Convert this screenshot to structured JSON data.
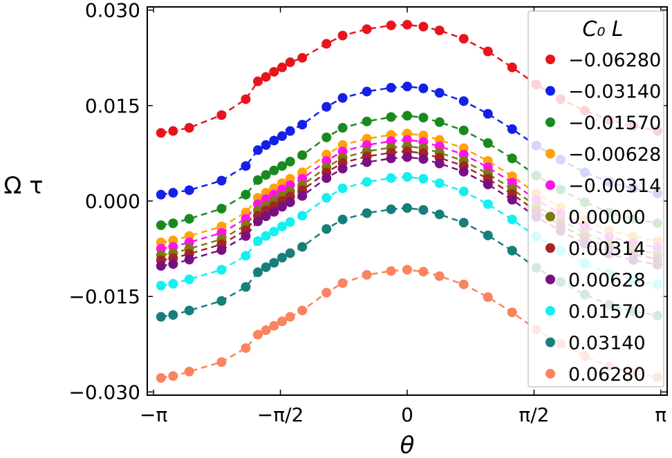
{
  "chart_data": {
    "type": "scatter",
    "xlabel": "θ",
    "ylabel": "Ω τ",
    "xlim": [
      -3.22,
      3.22
    ],
    "ylim": [
      -0.0305,
      0.0305
    ],
    "xticks": [
      {
        "value": -3.14159,
        "label": "−π"
      },
      {
        "value": -1.5708,
        "label": "−π/2"
      },
      {
        "value": 0,
        "label": "0"
      },
      {
        "value": 1.5708,
        "label": "π/2"
      },
      {
        "value": 3.14159,
        "label": "π"
      }
    ],
    "yticks": [
      {
        "value": 0.03,
        "label": "0.030"
      },
      {
        "value": 0.015,
        "label": "0.015"
      },
      {
        "value": 0.0,
        "label": "0.000"
      },
      {
        "value": -0.015,
        "label": "−0.015"
      },
      {
        "value": -0.03,
        "label": "−0.030"
      }
    ],
    "grid": false,
    "legend": {
      "title": "C₀ L",
      "placement": "right"
    },
    "fit_lines": "dashed",
    "x": [
      -3.05,
      -2.9,
      -2.7,
      -2.3,
      -2.0,
      -1.85,
      -1.75,
      -1.65,
      -1.55,
      -1.45,
      -1.3,
      -1.0,
      -0.8,
      -0.5,
      -0.2,
      0.0,
      0.2,
      0.4,
      0.7,
      1.0,
      1.3,
      1.6,
      1.9,
      2.2,
      2.5,
      2.8,
      3.1
    ],
    "series": [
      {
        "name": "−0.06280",
        "color": "#e8141c",
        "values": [
          0.0107,
          0.011,
          0.0115,
          0.0135,
          0.016,
          0.0188,
          0.0195,
          0.0203,
          0.021,
          0.0218,
          0.0225,
          0.0247,
          0.026,
          0.027,
          0.0276,
          0.0277,
          0.0274,
          0.0268,
          0.0255,
          0.0235,
          0.021,
          0.0183,
          0.016,
          0.0142,
          0.0128,
          0.0118,
          0.011
        ]
      },
      {
        "name": "−0.03140",
        "color": "#1420e8",
        "values": [
          0.001,
          0.0013,
          0.0017,
          0.0032,
          0.0055,
          0.008,
          0.0088,
          0.0095,
          0.0102,
          0.011,
          0.012,
          0.0148,
          0.0162,
          0.0172,
          0.0178,
          0.018,
          0.0177,
          0.017,
          0.0157,
          0.0137,
          0.0113,
          0.0087,
          0.0065,
          0.0045,
          0.003,
          0.002,
          0.0012
        ]
      },
      {
        "name": "−0.01570",
        "color": "#1a8a1f",
        "values": [
          -0.0038,
          -0.0035,
          -0.0028,
          -0.0012,
          0.001,
          0.0033,
          0.0041,
          0.0048,
          0.0055,
          0.0062,
          0.0072,
          0.01,
          0.0115,
          0.0125,
          0.0132,
          0.0134,
          0.0131,
          0.0124,
          0.0111,
          0.0091,
          0.0067,
          0.004,
          0.0018,
          -0.0002,
          -0.0018,
          -0.0028,
          -0.0035
        ]
      },
      {
        "name": "−0.00628",
        "color": "#ffa20a",
        "values": [
          -0.0065,
          -0.0062,
          -0.0055,
          -0.004,
          -0.0018,
          0.0005,
          0.0013,
          0.002,
          0.0028,
          0.0035,
          0.0045,
          0.0073,
          0.0088,
          0.0098,
          0.0104,
          0.0106,
          0.0103,
          0.0096,
          0.0083,
          0.0063,
          0.0039,
          0.0012,
          -0.001,
          -0.003,
          -0.0046,
          -0.0056,
          -0.0063
        ]
      },
      {
        "name": "−0.00314",
        "color": "#ff14e8",
        "values": [
          -0.0075,
          -0.0072,
          -0.0065,
          -0.005,
          -0.0028,
          -0.0005,
          0.0003,
          0.001,
          0.0018,
          0.0025,
          0.0035,
          0.0063,
          0.0078,
          0.0088,
          0.0094,
          0.0096,
          0.0093,
          0.0086,
          0.0073,
          0.0053,
          0.0029,
          0.0002,
          -0.002,
          -0.004,
          -0.0056,
          -0.0066,
          -0.0073
        ]
      },
      {
        "name": "0.00000",
        "color": "#7d7a12",
        "values": [
          -0.0085,
          -0.0082,
          -0.0075,
          -0.006,
          -0.0038,
          -0.0015,
          -0.0007,
          0.0,
          0.0008,
          0.0015,
          0.0025,
          0.0053,
          0.0068,
          0.0078,
          0.0084,
          0.0086,
          0.0083,
          0.0076,
          0.0063,
          0.0043,
          0.0019,
          -0.0008,
          -0.003,
          -0.005,
          -0.0066,
          -0.0076,
          -0.0083
        ]
      },
      {
        "name": "0.00314",
        "color": "#a32626",
        "values": [
          -0.0093,
          -0.009,
          -0.0083,
          -0.0068,
          -0.0046,
          -0.0023,
          -0.0015,
          -0.0008,
          0.0,
          0.0007,
          0.0017,
          0.0045,
          0.006,
          0.007,
          0.0076,
          0.0078,
          0.0075,
          0.0068,
          0.0055,
          0.0035,
          0.0011,
          -0.0016,
          -0.0038,
          -0.0058,
          -0.0074,
          -0.0084,
          -0.0091
        ]
      },
      {
        "name": "0.00628",
        "color": "#7a0f82",
        "values": [
          -0.0102,
          -0.0099,
          -0.0092,
          -0.0077,
          -0.0055,
          -0.0032,
          -0.0024,
          -0.0017,
          -0.0009,
          -0.0002,
          0.0008,
          0.0036,
          0.0051,
          0.0061,
          0.0067,
          0.0069,
          0.0066,
          0.0059,
          0.0046,
          0.0026,
          0.0002,
          -0.0025,
          -0.0047,
          -0.0067,
          -0.0083,
          -0.0093,
          -0.01
        ]
      },
      {
        "name": "0.01570",
        "color": "#14f0f0",
        "values": [
          -0.0133,
          -0.013,
          -0.0123,
          -0.0108,
          -0.0086,
          -0.0063,
          -0.0055,
          -0.0048,
          -0.004,
          -0.0033,
          -0.0023,
          0.0005,
          0.002,
          0.003,
          0.0036,
          0.0038,
          0.0035,
          0.0028,
          0.0015,
          -0.0005,
          -0.0029,
          -0.0056,
          -0.0078,
          -0.0098,
          -0.0114,
          -0.0124,
          -0.0131
        ]
      },
      {
        "name": "0.03140",
        "color": "#167f7a",
        "values": [
          -0.0182,
          -0.0179,
          -0.0172,
          -0.0157,
          -0.0135,
          -0.0112,
          -0.0104,
          -0.0097,
          -0.0089,
          -0.0082,
          -0.0072,
          -0.0044,
          -0.0029,
          -0.0019,
          -0.0013,
          -0.0011,
          -0.0014,
          -0.0021,
          -0.0034,
          -0.0054,
          -0.0078,
          -0.0105,
          -0.0127,
          -0.0147,
          -0.0163,
          -0.0173,
          -0.018
        ]
      },
      {
        "name": "0.06280",
        "color": "#f9845e",
        "values": [
          -0.0278,
          -0.0275,
          -0.0268,
          -0.0253,
          -0.0231,
          -0.021,
          -0.0203,
          -0.0196,
          -0.0189,
          -0.0182,
          -0.0172,
          -0.0144,
          -0.0129,
          -0.0116,
          -0.011,
          -0.0108,
          -0.0111,
          -0.0118,
          -0.0131,
          -0.0151,
          -0.0175,
          -0.0202,
          -0.0224,
          -0.0244,
          -0.026,
          -0.027,
          -0.0277
        ]
      }
    ]
  }
}
